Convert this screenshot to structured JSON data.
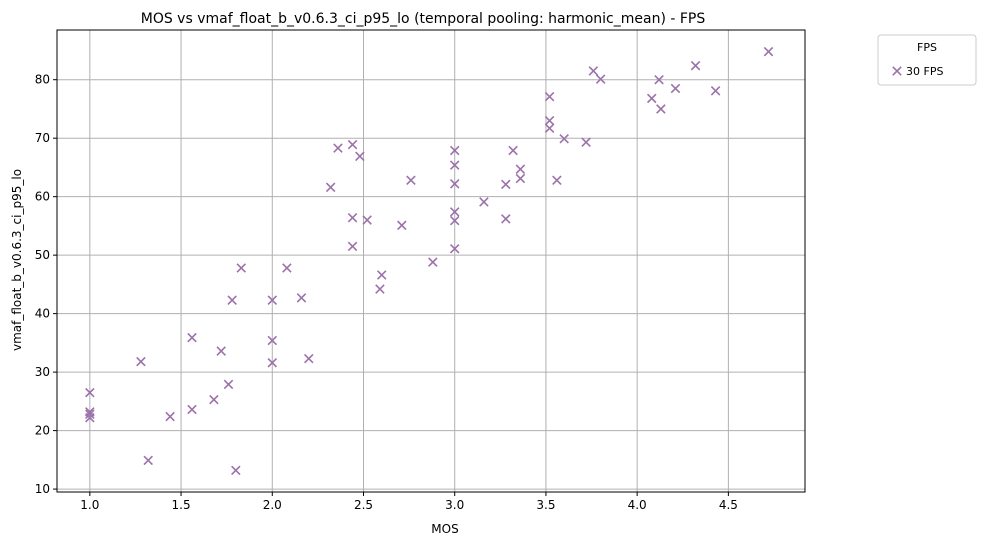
{
  "chart_data": {
    "type": "scatter",
    "title": "MOS vs vmaf_float_b_v0.6.3_ci_p95_lo (temporal pooling: harmonic_mean) - FPS",
    "xlabel": "MOS",
    "ylabel": "vmaf_float_b_v0.6.3_ci_p95_lo",
    "xlim": [
      0.82,
      4.92
    ],
    "ylim": [
      9.5,
      88.5
    ],
    "xticks": [
      1.0,
      1.5,
      2.0,
      2.5,
      3.0,
      3.5,
      4.0,
      4.5
    ],
    "xtick_labels": [
      "1.0",
      "1.5",
      "2.0",
      "2.5",
      "3.0",
      "3.5",
      "4.0",
      "4.5"
    ],
    "yticks": [
      10,
      20,
      30,
      40,
      50,
      60,
      70,
      80
    ],
    "ytick_labels": [
      "10",
      "20",
      "30",
      "40",
      "50",
      "60",
      "70",
      "80"
    ],
    "grid": true,
    "legend": {
      "title": "FPS",
      "placement": "outside-top-right"
    },
    "series": [
      {
        "name": "30 FPS",
        "color": "#9b72aa",
        "marker": "x",
        "points": [
          [
            1.0,
            26.5
          ],
          [
            1.0,
            23.2
          ],
          [
            1.0,
            22.8
          ],
          [
            1.0,
            22.2
          ],
          [
            1.28,
            31.8
          ],
          [
            1.32,
            14.9
          ],
          [
            1.44,
            22.4
          ],
          [
            1.56,
            35.9
          ],
          [
            1.56,
            23.6
          ],
          [
            1.68,
            25.3
          ],
          [
            1.72,
            33.6
          ],
          [
            1.76,
            27.9
          ],
          [
            1.78,
            42.3
          ],
          [
            1.8,
            13.2
          ],
          [
            1.83,
            47.8
          ],
          [
            2.0,
            42.3
          ],
          [
            2.0,
            35.4
          ],
          [
            2.0,
            31.6
          ],
          [
            2.08,
            47.8
          ],
          [
            2.16,
            42.7
          ],
          [
            2.2,
            32.3
          ],
          [
            2.32,
            61.6
          ],
          [
            2.36,
            68.3
          ],
          [
            2.44,
            68.9
          ],
          [
            2.44,
            56.4
          ],
          [
            2.44,
            51.5
          ],
          [
            2.48,
            66.9
          ],
          [
            2.52,
            56.0
          ],
          [
            2.59,
            44.2
          ],
          [
            2.6,
            46.6
          ],
          [
            2.71,
            55.1
          ],
          [
            2.76,
            62.8
          ],
          [
            2.88,
            48.8
          ],
          [
            3.0,
            67.9
          ],
          [
            3.0,
            65.4
          ],
          [
            3.0,
            62.2
          ],
          [
            3.0,
            57.4
          ],
          [
            3.0,
            55.9
          ],
          [
            3.0,
            51.1
          ],
          [
            3.16,
            59.1
          ],
          [
            3.28,
            62.1
          ],
          [
            3.28,
            56.2
          ],
          [
            3.32,
            67.9
          ],
          [
            3.36,
            64.7
          ],
          [
            3.36,
            63.1
          ],
          [
            3.52,
            77.1
          ],
          [
            3.52,
            73.0
          ],
          [
            3.52,
            71.7
          ],
          [
            3.56,
            62.8
          ],
          [
            3.6,
            69.9
          ],
          [
            3.72,
            69.3
          ],
          [
            3.76,
            81.5
          ],
          [
            3.8,
            80.1
          ],
          [
            4.08,
            76.8
          ],
          [
            4.12,
            80.0
          ],
          [
            4.13,
            75.0
          ],
          [
            4.21,
            78.5
          ],
          [
            4.32,
            82.4
          ],
          [
            4.43,
            78.1
          ],
          [
            4.72,
            84.8
          ]
        ]
      }
    ]
  }
}
